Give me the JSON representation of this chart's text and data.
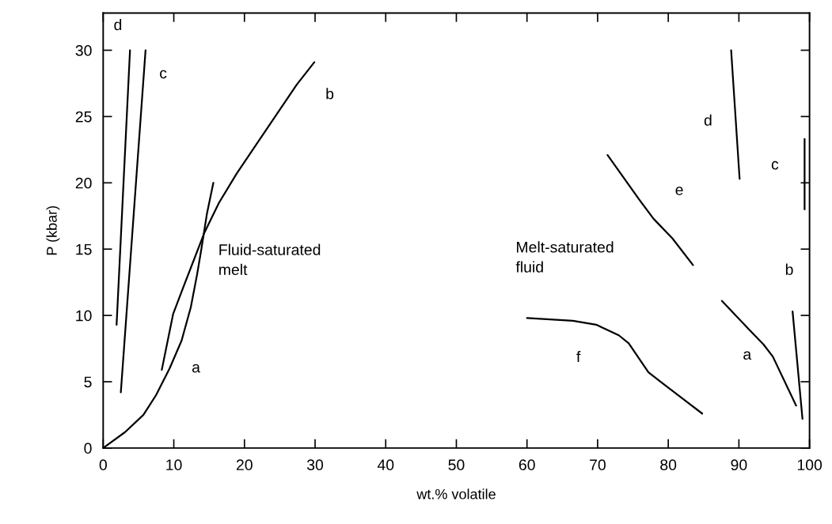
{
  "chart_data": {
    "type": "line",
    "xlabel": "wt.% volatile",
    "ylabel": "P (kbar)",
    "xlim": [
      0,
      100
    ],
    "ylim": [
      0,
      32.8
    ],
    "xticks": [
      0,
      10,
      20,
      30,
      40,
      50,
      60,
      70,
      80,
      90,
      100
    ],
    "yticks": [
      0,
      5,
      10,
      15,
      20,
      25,
      30
    ],
    "grid": false,
    "legend": "top",
    "marker": "none",
    "line_style": "solid",
    "series": [
      {
        "name": "a",
        "color": "#000000",
        "x": [
          0,
          3.1,
          5.7,
          7.5,
          9.4,
          11.1,
          12.4,
          13.3,
          13.9,
          14.7,
          15.6
        ],
        "values": [
          0,
          1.2,
          2.5,
          4.0,
          6.0,
          8.1,
          10.6,
          13.1,
          15.0,
          17.7,
          20.0
        ]
      },
      {
        "name": "b",
        "color": "#000000",
        "x": [
          8.3,
          9.9,
          11.4,
          14.3,
          16.4,
          18.9,
          22.2,
          27.4,
          29.9
        ],
        "values": [
          5.9,
          10.1,
          12.2,
          16.2,
          18.5,
          20.7,
          23.3,
          27.4,
          29.1
        ]
      },
      {
        "name": "c",
        "color": "#000000",
        "x": [
          2.5,
          6.0
        ],
        "values": [
          4.2,
          30
        ]
      },
      {
        "name": "d",
        "color": "#000000",
        "x": [
          1.9,
          3.8
        ],
        "values": [
          9.3,
          30
        ]
      },
      {
        "name": "e",
        "color": "#000000",
        "x": [
          71.4,
          75.8,
          77.9,
          80.6,
          83.5
        ],
        "values": [
          22.1,
          18.8,
          17.3,
          15.8,
          13.8
        ]
      },
      {
        "name": "f",
        "color": "#000000",
        "x": [
          60,
          66.5,
          69.8,
          73.0,
          74.4,
          77.2,
          79.4,
          84.8
        ],
        "values": [
          9.8,
          9.6,
          9.3,
          8.5,
          7.9,
          5.7,
          4.8,
          2.6
        ]
      },
      {
        "name": "d",
        "color": "#000000",
        "x": [
          88.9,
          90.1
        ],
        "values": [
          30,
          20.3
        ]
      },
      {
        "name": "c",
        "color": "#000000",
        "x": [
          99.3,
          99.3
        ],
        "values": [
          23.3,
          18.0
        ]
      },
      {
        "name": "b",
        "color": "#000000",
        "x": [
          97.6,
          99.0
        ],
        "values": [
          10.3,
          2.2
        ]
      },
      {
        "name": "a",
        "color": "#000000",
        "x": [
          87.6,
          91.5,
          93.5,
          94.8,
          98.1
        ],
        "values": [
          11.1,
          8.9,
          7.8,
          6.9,
          3.2
        ]
      }
    ],
    "annotations": [
      "Fluid-saturated\nmelt",
      "Melt-saturated\nfluid"
    ]
  }
}
